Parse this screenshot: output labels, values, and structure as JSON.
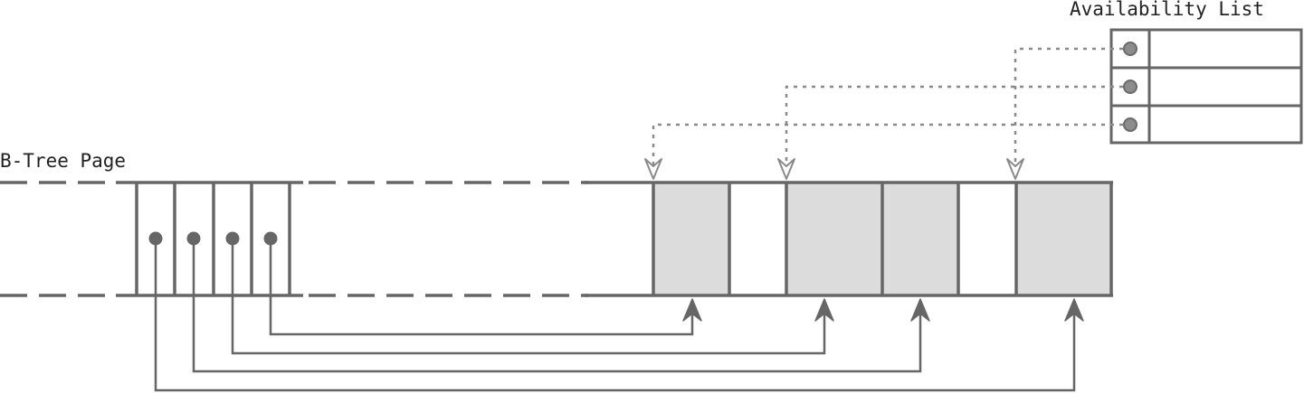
{
  "labels": {
    "btree_page": "B-Tree Page",
    "availability_list": "Availability List"
  },
  "btree": {
    "slot_count": 4,
    "pointer_targets": [
      3,
      2,
      1,
      0
    ]
  },
  "page_cells": [
    {
      "kind": "used"
    },
    {
      "kind": "free"
    },
    {
      "kind": "used"
    },
    {
      "kind": "used"
    },
    {
      "kind": "free"
    },
    {
      "kind": "used"
    }
  ],
  "availability_list": {
    "entries": [
      {
        "target_cell": 5
      },
      {
        "target_cell": 2
      },
      {
        "target_cell": 0
      }
    ]
  },
  "colors": {
    "line": "#666666",
    "dotted": "#8a8a8a",
    "used_fill": "#dcdcdc",
    "free_fill": "#ffffff",
    "text": "#222222"
  }
}
